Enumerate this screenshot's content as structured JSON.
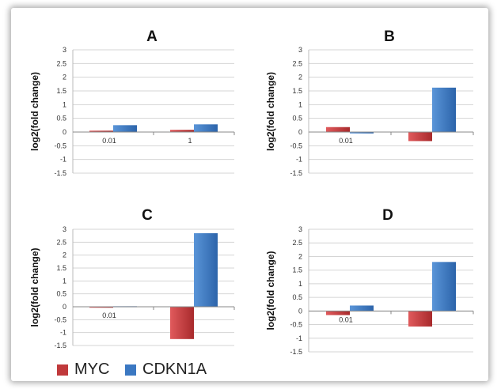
{
  "colors": {
    "MYC": "#c0393b",
    "CDKN1A": "#3b78c2"
  },
  "legend": {
    "myc_label": "MYC",
    "cdkn1a_label": "CDKN1A"
  },
  "chart_data": [
    {
      "type": "bar",
      "title": "A",
      "ylabel": "log2(fold change)",
      "categories": [
        "0.01",
        "1"
      ],
      "ylim": [
        -1.5,
        3
      ],
      "yticks": [
        "3",
        "2.5",
        "2",
        "1.5",
        "1",
        "0.5",
        "0",
        "-0.5",
        "-1",
        "-1.5"
      ],
      "series": [
        {
          "name": "MYC",
          "values": [
            0.05,
            0.08
          ]
        },
        {
          "name": "CDKN1A",
          "values": [
            0.25,
            0.28
          ]
        }
      ]
    },
    {
      "type": "bar",
      "title": "B",
      "ylabel": "log2(fold change)",
      "categories": [
        "0.01",
        ""
      ],
      "ylim": [
        -1.5,
        3
      ],
      "yticks": [
        "3",
        "2.5",
        "2",
        "1.5",
        "1",
        "0.5",
        "0",
        "-0.5",
        "-1",
        "-1.5"
      ],
      "series": [
        {
          "name": "MYC",
          "values": [
            0.18,
            -0.33
          ]
        },
        {
          "name": "CDKN1A",
          "values": [
            -0.05,
            1.62
          ]
        }
      ]
    },
    {
      "type": "bar",
      "title": "C",
      "ylabel": "log2(fold change)",
      "categories": [
        "0.01",
        ""
      ],
      "ylim": [
        -1.5,
        3
      ],
      "yticks": [
        "3",
        "2.5",
        "2",
        "1.5",
        "1",
        "0.5",
        "0",
        "-0.5",
        "-1",
        "-1.5"
      ],
      "series": [
        {
          "name": "MYC",
          "values": [
            -0.02,
            -1.25
          ]
        },
        {
          "name": "CDKN1A",
          "values": [
            0.02,
            2.85
          ]
        }
      ]
    },
    {
      "type": "bar",
      "title": "D",
      "ylabel": "log2(fold change)",
      "categories": [
        "0.01",
        ""
      ],
      "ylim": [
        -1.5,
        3
      ],
      "yticks": [
        "3",
        "2.5",
        "2",
        "1.5",
        "1",
        "0.5",
        "0",
        "-0.5",
        "-1",
        "-1.5"
      ],
      "series": [
        {
          "name": "MYC",
          "values": [
            -0.15,
            -0.57
          ]
        },
        {
          "name": "CDKN1A",
          "values": [
            0.2,
            1.8
          ]
        }
      ]
    }
  ]
}
